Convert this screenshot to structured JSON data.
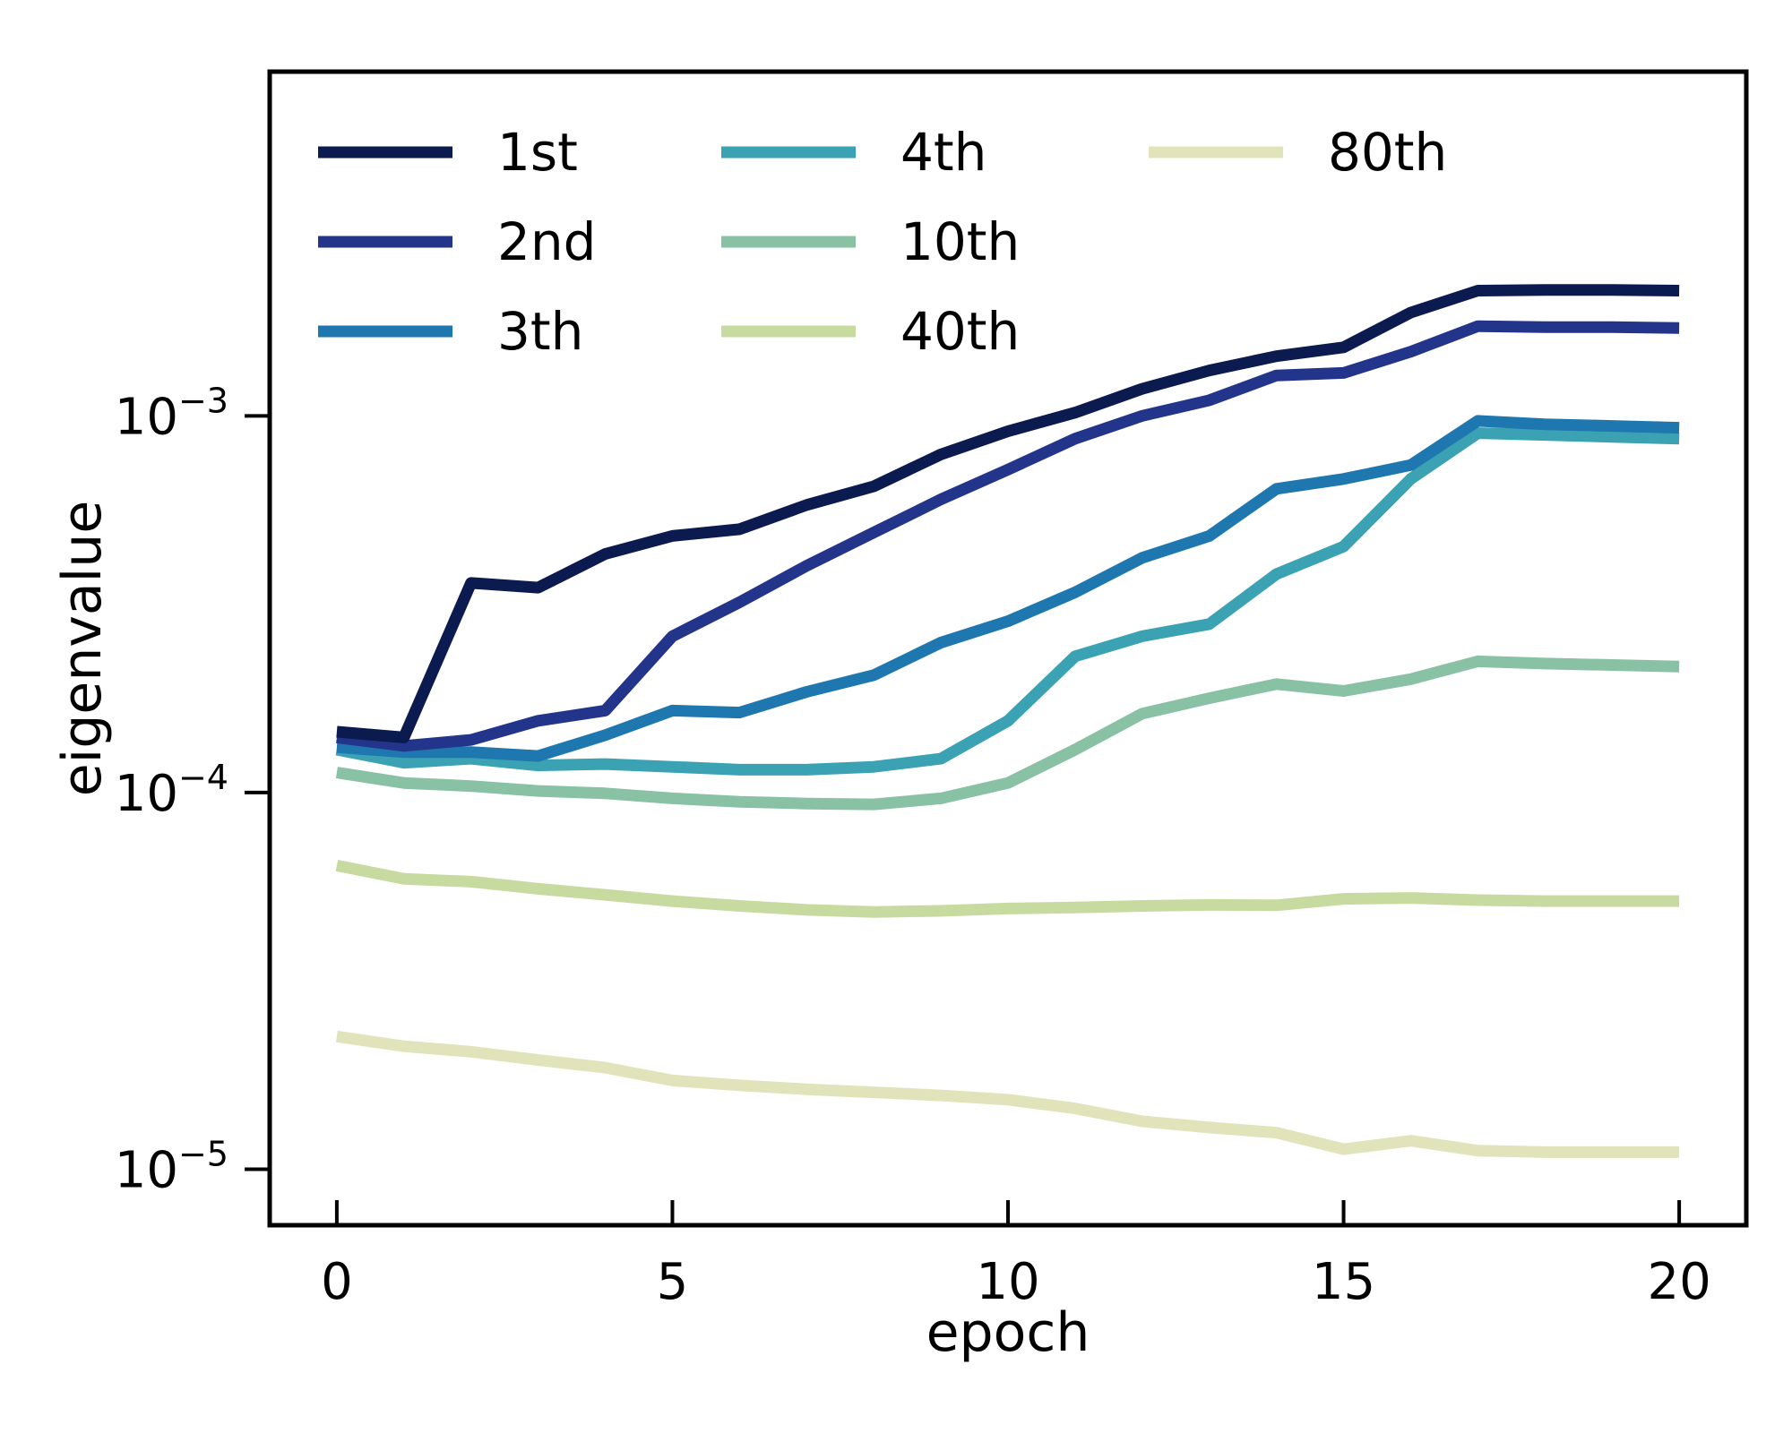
{
  "chart_data": {
    "type": "line",
    "title": "",
    "xlabel": "epoch",
    "ylabel": "eigenvalue",
    "yscale": "log",
    "xlim": [
      -1,
      21
    ],
    "ylim": [
      7.1e-06,
      0.0082
    ],
    "xticks": [
      0,
      5,
      10,
      15,
      20
    ],
    "xtick_labels": [
      "0",
      "5",
      "10",
      "15",
      "20"
    ],
    "yticks": [
      1e-05,
      0.0001,
      0.001
    ],
    "ytick_labels": [
      {
        "base": "10",
        "exp": "−5"
      },
      {
        "base": "10",
        "exp": "−4"
      },
      {
        "base": "10",
        "exp": "−3"
      }
    ],
    "grid": false,
    "legend_position": "top-left",
    "x": [
      0,
      1,
      2,
      3,
      4,
      5,
      6,
      7,
      8,
      9,
      10,
      11,
      12,
      13,
      14,
      15,
      16,
      17,
      18,
      19,
      20
    ],
    "series": [
      {
        "name": "1st",
        "color": "#0b1a4f",
        "values": [
          0.000145,
          0.00014,
          0.00036,
          0.00035,
          0.00043,
          0.00048,
          0.0005,
          0.00058,
          0.00065,
          0.00079,
          0.00091,
          0.00102,
          0.00118,
          0.00132,
          0.00144,
          0.00152,
          0.00188,
          0.00215,
          0.00216,
          0.00216,
          0.00215
        ]
      },
      {
        "name": "2nd",
        "color": "#22358b",
        "values": [
          0.00014,
          0.000133,
          0.000138,
          0.000155,
          0.000165,
          0.00026,
          0.00032,
          0.0004,
          0.00049,
          0.0006,
          0.00072,
          0.00087,
          0.001,
          0.0011,
          0.00128,
          0.0013,
          0.00148,
          0.00173,
          0.00172,
          0.00172,
          0.00171
        ]
      },
      {
        "name": "3th",
        "color": "#1f77b0",
        "values": [
          0.000132,
          0.000128,
          0.000128,
          0.000125,
          0.000142,
          0.000165,
          0.000163,
          0.000185,
          0.000205,
          0.00025,
          0.000285,
          0.00034,
          0.00042,
          0.00048,
          0.00064,
          0.00068,
          0.00074,
          0.00097,
          0.00095,
          0.00094,
          0.00093
        ]
      },
      {
        "name": "4th",
        "color": "#3aa2b3",
        "values": [
          0.00013,
          0.00012,
          0.000123,
          0.000118,
          0.000119,
          0.000117,
          0.000115,
          0.000115,
          0.000117,
          0.000123,
          0.000155,
          0.00023,
          0.00026,
          0.00028,
          0.00038,
          0.00045,
          0.00068,
          0.0009,
          0.00089,
          0.00088,
          0.00087
        ]
      },
      {
        "name": "10th",
        "color": "#88c1a3",
        "values": [
          0.000113,
          0.000106,
          0.000104,
          0.000101,
          9.95e-05,
          9.65e-05,
          9.45e-05,
          9.35e-05,
          9.3e-05,
          9.65e-05,
          0.000106,
          0.00013,
          0.000162,
          0.000178,
          0.000194,
          0.000186,
          0.0002,
          0.000223,
          0.00022,
          0.000218,
          0.000216
        ]
      },
      {
        "name": "40th",
        "color": "#c7dba1",
        "values": [
          6.4e-05,
          5.9e-05,
          5.8e-05,
          5.55e-05,
          5.35e-05,
          5.15e-05,
          5e-05,
          4.88e-05,
          4.82e-05,
          4.85e-05,
          4.92e-05,
          4.95e-05,
          5e-05,
          5.03e-05,
          5.02e-05,
          5.22e-05,
          5.25e-05,
          5.18e-05,
          5.15e-05,
          5.15e-05,
          5.15e-05
        ]
      },
      {
        "name": "80th",
        "color": "#e1e4ba",
        "values": [
          2.25e-05,
          2.12e-05,
          2.05e-05,
          1.95e-05,
          1.86e-05,
          1.72e-05,
          1.67e-05,
          1.63e-05,
          1.6e-05,
          1.57e-05,
          1.53e-05,
          1.45e-05,
          1.34e-05,
          1.29e-05,
          1.25e-05,
          1.13e-05,
          1.19e-05,
          1.12e-05,
          1.11e-05,
          1.11e-05,
          1.11e-05
        ]
      }
    ]
  }
}
